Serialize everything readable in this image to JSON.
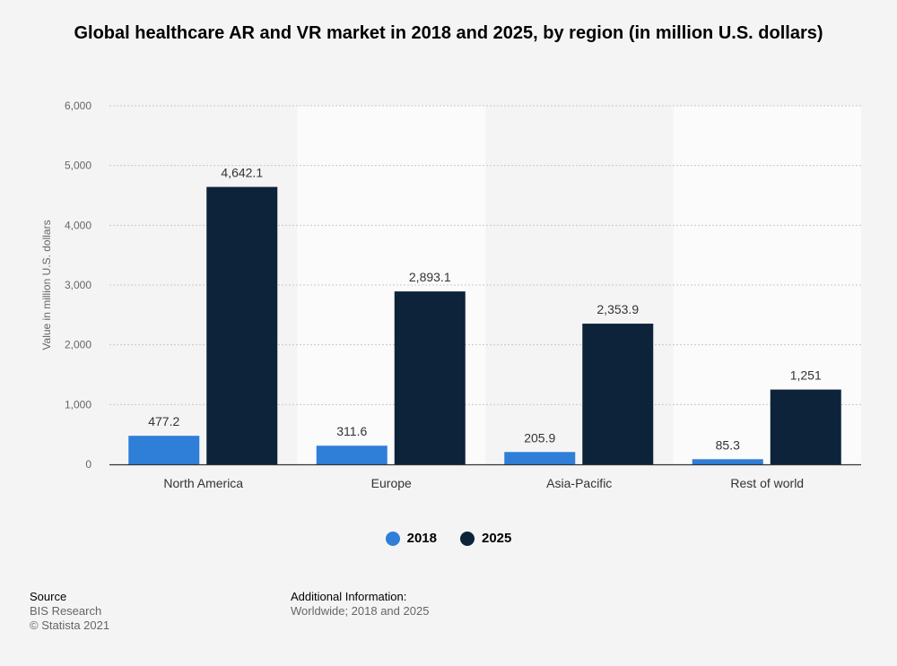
{
  "chart_data": {
    "type": "bar",
    "title": "Global healthcare AR and VR market in 2018 and 2025, by region (in million U.S. dollars)",
    "categories": [
      "North America",
      "Europe",
      "Asia-Pacific",
      "Rest of world"
    ],
    "series": [
      {
        "name": "2018",
        "values": [
          477.2,
          311.6,
          205.9,
          85.3
        ],
        "labels": [
          "477.2",
          "311.6",
          "205.9",
          "85.3"
        ],
        "color": "#2f7ed8"
      },
      {
        "name": "2025",
        "values": [
          4642.1,
          2893.1,
          2353.9,
          1251
        ],
        "labels": [
          "4,642.1",
          "2,893.1",
          "2,353.9",
          "1,251"
        ],
        "color": "#0d233a"
      }
    ],
    "ylabel": "Value in million U.S. dollars",
    "ylim": [
      0,
      6000
    ],
    "yticks": [
      0,
      1000,
      2000,
      3000,
      4000,
      5000,
      6000
    ],
    "ytick_labels": [
      "0",
      "1,000",
      "2,000",
      "3,000",
      "4,000",
      "5,000",
      "6,000"
    ],
    "grid": true,
    "legend_position": "bottom-center"
  },
  "footer": {
    "source_heading": "Source",
    "source_lines": [
      "BIS Research",
      "© Statista 2021"
    ],
    "info_heading": "Additional Information:",
    "info_lines": [
      "Worldwide; 2018 and 2025"
    ]
  }
}
